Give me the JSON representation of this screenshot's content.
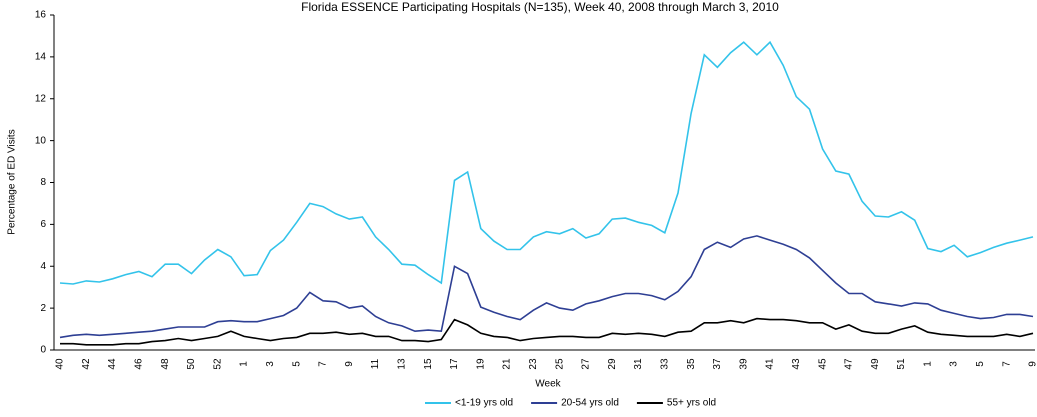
{
  "chart_data": {
    "type": "line",
    "title": "Florida ESSENCE Participating Hospitals (N=135), Week 40, 2008 through March 3, 2010",
    "x_label": "Week",
    "y_label": "Percentage of ED Visits",
    "categories": [
      "40",
      null,
      "42",
      null,
      "44",
      null,
      "46",
      null,
      "48",
      null,
      "50",
      null,
      "52",
      null,
      "1",
      null,
      "3",
      null,
      "5",
      null,
      "7",
      null,
      "9",
      null,
      "11",
      null,
      "13",
      null,
      "15",
      null,
      "17",
      null,
      "19",
      null,
      "21",
      null,
      "23",
      null,
      "25",
      null,
      "27",
      null,
      "29",
      null,
      "31",
      null,
      "33",
      null,
      "35",
      null,
      "37",
      null,
      "39",
      null,
      "41",
      null,
      "43",
      null,
      "45",
      null,
      "47",
      null,
      "49",
      null,
      "51",
      null,
      "1",
      null,
      "3",
      null,
      "5",
      null,
      "7",
      null,
      "9"
    ],
    "series": [
      {
        "name": "<1-19 yrs old",
        "color": "#33c3ea",
        "values": [
          3.2,
          3.15,
          3.3,
          3.25,
          3.4,
          3.6,
          3.75,
          3.5,
          4.1,
          4.1,
          3.65,
          4.3,
          4.8,
          4.45,
          3.55,
          3.6,
          4.75,
          5.25,
          6.1,
          7.0,
          6.85,
          6.5,
          6.25,
          6.35,
          5.4,
          4.8,
          4.1,
          4.05,
          3.6,
          3.2,
          8.1,
          8.5,
          5.8,
          5.2,
          4.8,
          4.8,
          5.4,
          5.65,
          5.55,
          5.8,
          5.35,
          5.55,
          6.25,
          6.3,
          6.1,
          5.95,
          5.6,
          7.5,
          11.3,
          14.1,
          13.5,
          14.2,
          14.7,
          14.1,
          14.7,
          13.6,
          12.1,
          11.5,
          9.6,
          8.55,
          8.4,
          7.1,
          6.4,
          6.35,
          6.6,
          6.2,
          4.85,
          4.7,
          5.0,
          4.45,
          4.65,
          4.9,
          5.1,
          5.25,
          5.4
        ]
      },
      {
        "name": "20-54 yrs old",
        "color": "#2e3f94",
        "values": [
          0.6,
          0.7,
          0.75,
          0.7,
          0.75,
          0.8,
          0.85,
          0.9,
          1.0,
          1.1,
          1.1,
          1.1,
          1.35,
          1.4,
          1.35,
          1.35,
          1.5,
          1.65,
          2.0,
          2.75,
          2.35,
          2.3,
          2.0,
          2.1,
          1.6,
          1.3,
          1.15,
          0.9,
          0.95,
          0.9,
          4.0,
          3.65,
          2.05,
          1.8,
          1.6,
          1.45,
          1.9,
          2.25,
          2.0,
          1.9,
          2.2,
          2.35,
          2.55,
          2.7,
          2.7,
          2.6,
          2.4,
          2.8,
          3.5,
          4.8,
          5.15,
          4.9,
          5.3,
          5.45,
          5.25,
          5.05,
          4.8,
          4.4,
          3.8,
          3.2,
          2.7,
          2.7,
          2.3,
          2.2,
          2.1,
          2.25,
          2.2,
          1.9,
          1.75,
          1.6,
          1.5,
          1.55,
          1.7,
          1.7,
          1.6
        ]
      },
      {
        "name": "55+ yrs old",
        "color": "#000000",
        "values": [
          0.3,
          0.3,
          0.25,
          0.25,
          0.25,
          0.3,
          0.3,
          0.4,
          0.45,
          0.55,
          0.45,
          0.55,
          0.65,
          0.9,
          0.65,
          0.55,
          0.45,
          0.55,
          0.6,
          0.8,
          0.8,
          0.85,
          0.75,
          0.8,
          0.65,
          0.65,
          0.45,
          0.45,
          0.4,
          0.5,
          1.45,
          1.2,
          0.8,
          0.65,
          0.6,
          0.45,
          0.55,
          0.6,
          0.65,
          0.65,
          0.6,
          0.6,
          0.8,
          0.75,
          0.8,
          0.75,
          0.65,
          0.85,
          0.9,
          1.3,
          1.3,
          1.4,
          1.3,
          1.5,
          1.45,
          1.45,
          1.4,
          1.3,
          1.3,
          1.0,
          1.2,
          0.9,
          0.8,
          0.8,
          1.0,
          1.15,
          0.85,
          0.75,
          0.7,
          0.65,
          0.65,
          0.65,
          0.75,
          0.65,
          0.8
        ]
      }
    ],
    "ylim": [
      0,
      16
    ],
    "yticks": [
      0,
      2,
      4,
      6,
      8,
      10,
      12,
      14,
      16
    ],
    "legend": "bottom"
  }
}
